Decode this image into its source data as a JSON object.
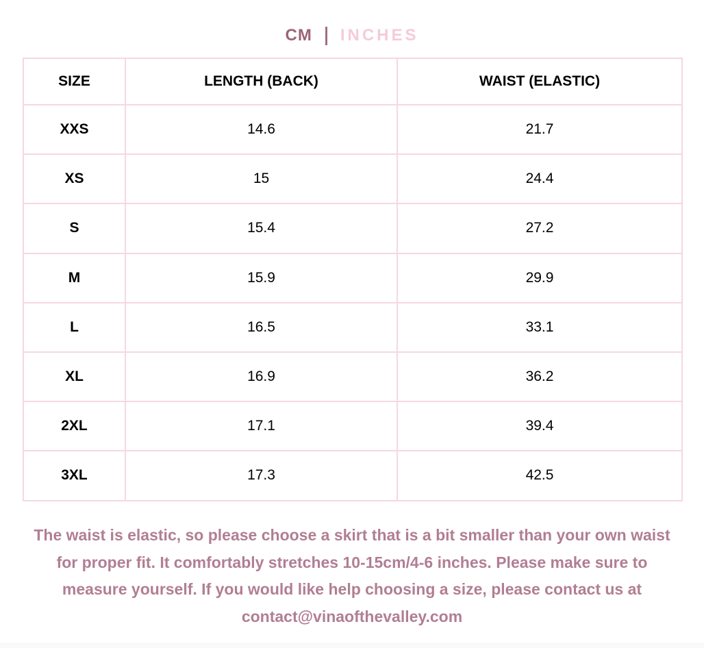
{
  "unit_toggle": {
    "cm_label": "CM",
    "inches_label": "INCHES"
  },
  "colors": {
    "active_unit": "#9c6379",
    "inactive_unit": "#f5cbd9",
    "divider": "#a06d85",
    "table_border": "#f6d7e3",
    "note_text": "#b17e93",
    "bottom_strip": "#f8f9fa"
  },
  "table": {
    "columns": [
      "SIZE",
      "LENGTH (BACK)",
      "WAIST (ELASTIC)"
    ],
    "rows": [
      {
        "size": "XXS",
        "length": "14.6",
        "waist": "21.7"
      },
      {
        "size": "XS",
        "length": "15",
        "waist": "24.4"
      },
      {
        "size": "S",
        "length": "15.4",
        "waist": "27.2"
      },
      {
        "size": "M",
        "length": "15.9",
        "waist": "29.9"
      },
      {
        "size": "L",
        "length": "16.5",
        "waist": "33.1"
      },
      {
        "size": "XL",
        "length": "16.9",
        "waist": "36.2"
      },
      {
        "size": "2XL",
        "length": "17.1",
        "waist": "39.4"
      },
      {
        "size": "3XL",
        "length": "17.3",
        "waist": "42.5"
      }
    ]
  },
  "note": {
    "text": "The waist is elastic, so please choose a skirt that is a bit smaller than your own waist for proper fit. It comfortably stretches 10-15cm/4-6 inches. Please make sure to measure yourself. If you would like help choosing a size, please contact us at contact@vinaofthevalley.com"
  }
}
